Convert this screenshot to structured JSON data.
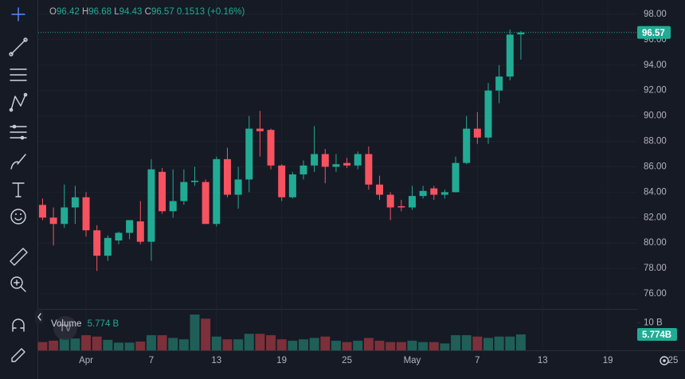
{
  "chart_data": {
    "type": "candlestick",
    "open": [
      83.0,
      82.0,
      81.5,
      82.8,
      83.6,
      81.0,
      79.0,
      80.2,
      80.8,
      81.7,
      80.1,
      85.6,
      82.5,
      83.3,
      84.8,
      84.8,
      81.5,
      86.6,
      83.8,
      85.0,
      89.0,
      88.9,
      86.1,
      83.6,
      85.4,
      86.1,
      87.0,
      86.0,
      86.3,
      86.1,
      87.0,
      84.6,
      83.8,
      82.9,
      82.8,
      83.7,
      84.3,
      83.8,
      84.0,
      86.3,
      89.0,
      88.3,
      92.0,
      93.1,
      96.42
    ],
    "high": [
      83.5,
      82.8,
      84.6,
      84.5,
      84.0,
      81.4,
      80.6,
      80.9,
      81.8,
      83.3,
      86.6,
      85.9,
      85.8,
      85.8,
      86.0,
      85.0,
      86.8,
      87.5,
      86.0,
      90.0,
      90.4,
      89.0,
      86.2,
      85.6,
      86.5,
      89.2,
      87.4,
      87.0,
      86.7,
      87.2,
      87.6,
      85.3,
      84.0,
      83.4,
      84.5,
      84.5,
      84.5,
      84.2,
      86.8,
      90.0,
      90.3,
      92.6,
      94.0,
      96.8,
      96.68
    ],
    "low": [
      81.8,
      79.8,
      81.2,
      81.5,
      80.5,
      77.8,
      78.6,
      79.9,
      80.3,
      79.9,
      78.6,
      82.3,
      82.0,
      83.0,
      84.5,
      81.5,
      81.3,
      83.6,
      82.7,
      84.0,
      86.8,
      85.8,
      83.3,
      83.5,
      85.0,
      85.6,
      84.7,
      85.6,
      85.9,
      85.8,
      84.2,
      83.4,
      81.8,
      82.5,
      82.6,
      83.5,
      83.4,
      83.5,
      84.0,
      86.2,
      87.8,
      87.8,
      91.0,
      92.8,
      94.43
    ],
    "close": [
      82.0,
      81.5,
      82.8,
      83.6,
      81.0,
      79.0,
      80.4,
      80.8,
      81.8,
      80.1,
      85.8,
      82.5,
      83.3,
      84.8,
      84.9,
      81.5,
      86.6,
      83.8,
      85.0,
      89.0,
      88.8,
      86.1,
      83.6,
      85.4,
      86.1,
      87.0,
      86.0,
      86.2,
      86.1,
      87.0,
      84.6,
      83.8,
      82.8,
      82.8,
      83.7,
      84.1,
      83.8,
      84.0,
      86.3,
      89.0,
      88.3,
      92.0,
      93.1,
      96.4,
      96.57
    ],
    "up_color": "#22ab94",
    "down_color": "#f7525f",
    "ylim": [
      75,
      99
    ],
    "yticks": [
      {
        "value": 76,
        "label": "76.00"
      },
      {
        "value": 78,
        "label": "78.00"
      },
      {
        "value": 80,
        "label": "80.00"
      },
      {
        "value": 82,
        "label": "82.00"
      },
      {
        "value": 84,
        "label": "84.00"
      },
      {
        "value": 86,
        "label": "86.00"
      },
      {
        "value": 88,
        "label": "88.00"
      },
      {
        "value": 90,
        "label": "90.00"
      },
      {
        "value": 92,
        "label": "92.00"
      },
      {
        "value": 94,
        "label": "94.00"
      },
      {
        "value": 96,
        "label": "96.00"
      },
      {
        "value": 98,
        "label": "98.00"
      }
    ],
    "xlim": [
      -0.4,
      59.1
    ],
    "xticks": [
      {
        "value": 4,
        "label": "Apr"
      },
      {
        "value": 10,
        "label": "7"
      },
      {
        "value": 16,
        "label": "13"
      },
      {
        "value": 22,
        "label": "19"
      },
      {
        "value": 28,
        "label": "25"
      },
      {
        "value": 34,
        "label": "May"
      },
      {
        "value": 40,
        "label": "7"
      },
      {
        "value": 46,
        "label": "13"
      },
      {
        "value": 52,
        "label": "19"
      },
      {
        "value": 58,
        "label": "25"
      }
    ],
    "header": {
      "prefixes": [
        "O",
        "H",
        "L",
        "C"
      ],
      "change": 0.1513,
      "change_pct_label": "(+0.16%)"
    },
    "volume": {
      "name": "Volume",
      "values": [
        3.0,
        3.5,
        4.5,
        4.3,
        5.5,
        5.0,
        3.8,
        2.8,
        2.8,
        3.2,
        5.5,
        5.5,
        4.5,
        4.0,
        13.0,
        11.5,
        5.0,
        4.0,
        4.0,
        6.0,
        6.0,
        5.5,
        4.0,
        3.5,
        4.0,
        4.5,
        5.0,
        3.5,
        3.0,
        3.5,
        4.5,
        3.5,
        3.0,
        3.0,
        3.5,
        3.0,
        3.0,
        2.5,
        5.5,
        5.5,
        5.0,
        4.5,
        5.0,
        5.0,
        5.774
      ],
      "legend_label": "5.774 B",
      "last_label": "5.774B",
      "up_color": "#1f5f58",
      "down_color": "#7c3039",
      "y2lim": [
        0,
        14.45
      ],
      "y2ticks": [
        {
          "value": 10,
          "label": "10 B"
        }
      ]
    }
  }
}
